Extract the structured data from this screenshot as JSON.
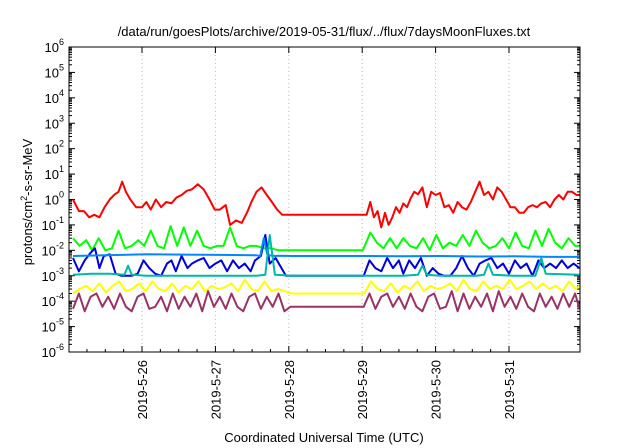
{
  "chart_data": {
    "type": "line",
    "title": "/data/run/goesPlots/archive/2019-05-31/flux/../flux/7daysMoonFluxes.txt",
    "xlabel": "Coordinated Universal Time (UTC)",
    "ylabel": {
      "base": "protons/cm",
      "sup": "2",
      "rest": "-s-sr-MeV"
    },
    "yscale": "log",
    "ylim": [
      1e-06,
      1000000.0
    ],
    "xlim": [
      "2019-05-25 02:00",
      "2019-05-31 23:30"
    ],
    "x_tick_labels": [
      "2019-5-26",
      "2019-5-27",
      "2019-5-28",
      "2019-5-29",
      "2019-5-30",
      "2019-5-31"
    ],
    "x_tick_days": [
      1,
      2,
      3,
      4,
      5,
      6
    ],
    "y_ticks": [
      {
        "base": "10",
        "exp": "-6"
      },
      {
        "base": "10",
        "exp": "-5"
      },
      {
        "base": "10",
        "exp": "-4"
      },
      {
        "base": "10",
        "exp": "-3"
      },
      {
        "base": "10",
        "exp": "-2"
      },
      {
        "base": "10",
        "exp": "-1"
      },
      {
        "base": "10",
        "exp": "0"
      },
      {
        "base": "10",
        "exp": "1"
      },
      {
        "base": "10",
        "exp": "2"
      },
      {
        "base": "10",
        "exp": "3"
      },
      {
        "base": "10",
        "exp": "4"
      },
      {
        "base": "10",
        "exp": "5"
      },
      {
        "base": "10",
        "exp": "6"
      }
    ],
    "grid": "vertical dotted at day ticks",
    "legend": "none",
    "series": [
      {
        "color": "#ff0000",
        "width": 2,
        "t": [
          0,
          0.08,
          0.15,
          0.22,
          0.29,
          0.36,
          0.43,
          0.5,
          0.57,
          0.62,
          0.67,
          0.72,
          0.78,
          0.86,
          0.94,
          1.0,
          1.06,
          1.13,
          1.2,
          1.27,
          1.34,
          1.41,
          1.48,
          1.55,
          1.62,
          1.7,
          1.78,
          1.86,
          1.93,
          2.0,
          2.08,
          2.14,
          2.22,
          2.3,
          2.38,
          2.43,
          2.5,
          2.57,
          2.64,
          2.71,
          2.78,
          2.85,
          2.92,
          3.0,
          3.1,
          3.2,
          3.3,
          3.4,
          3.5,
          3.6,
          3.7,
          3.8,
          3.9,
          4.0,
          4.05,
          4.1,
          4.15,
          4.2,
          4.25,
          4.3,
          4.35,
          4.4,
          4.45,
          4.5,
          4.55,
          4.6,
          4.65,
          4.7,
          4.76,
          4.82,
          4.88,
          4.94,
          5.0,
          5.06,
          5.12,
          5.18,
          5.24,
          5.3,
          5.36,
          5.42,
          5.48,
          5.54,
          5.6,
          5.66,
          5.72,
          5.78,
          5.84,
          5.9,
          5.96,
          6.02,
          6.08,
          6.14,
          6.2,
          6.26,
          6.32,
          6.38,
          6.44,
          6.5,
          6.56,
          6.62,
          6.68,
          6.74,
          6.8,
          6.86,
          6.9
        ],
        "y": [
          1.0,
          0.35,
          0.35,
          0.2,
          0.25,
          0.2,
          0.5,
          1.0,
          1.6,
          2.0,
          5.0,
          2.0,
          1.0,
          0.5,
          0.5,
          0.8,
          0.4,
          1.0,
          0.5,
          0.8,
          0.7,
          1.2,
          1.5,
          2.2,
          2.5,
          4.0,
          2.5,
          1.0,
          0.4,
          0.4,
          0.6,
          0.1,
          0.15,
          0.12,
          0.35,
          0.8,
          2.0,
          3.0,
          1.5,
          0.8,
          0.4,
          0.25,
          0.25,
          0.25,
          0.25,
          0.25,
          0.25,
          0.25,
          0.25,
          0.25,
          0.25,
          0.25,
          0.25,
          0.25,
          0.8,
          0.2,
          0.35,
          0.08,
          0.3,
          0.1,
          0.2,
          0.5,
          0.3,
          0.7,
          0.5,
          1.1,
          2.0,
          1.6,
          3.0,
          0.5,
          2.0,
          1.5,
          1.8,
          0.5,
          0.6,
          0.3,
          0.8,
          0.5,
          0.4,
          0.8,
          2.0,
          5.0,
          1.5,
          2.0,
          1.0,
          3.0,
          2.0,
          1.0,
          0.5,
          0.5,
          0.3,
          0.3,
          0.5,
          0.6,
          0.5,
          0.7,
          0.8,
          0.5,
          1.0,
          1.5,
          1.0,
          2.0,
          2.0,
          1.5,
          1.5
        ]
      },
      {
        "color": "#00ff00",
        "width": 2,
        "t": [
          0,
          0.09,
          0.18,
          0.26,
          0.35,
          0.44,
          0.53,
          0.62,
          0.71,
          0.8,
          0.89,
          0.97,
          1.06,
          1.15,
          1.24,
          1.33,
          1.42,
          1.51,
          1.6,
          1.69,
          1.78,
          1.87,
          1.96,
          2.05,
          2.14,
          2.23,
          2.32,
          2.41,
          2.5,
          2.6,
          2.7,
          2.8,
          2.9,
          3.0,
          3.2,
          3.4,
          3.6,
          3.8,
          3.95,
          4.05,
          4.14,
          4.23,
          4.32,
          4.41,
          4.5,
          4.59,
          4.68,
          4.77,
          4.86,
          4.95,
          5.04,
          5.13,
          5.22,
          5.31,
          5.4,
          5.49,
          5.58,
          5.67,
          5.76,
          5.85,
          5.94,
          6.03,
          6.12,
          6.21,
          6.3,
          6.39,
          6.48,
          6.57,
          6.66,
          6.75,
          6.84,
          6.9
        ],
        "y": [
          0.03,
          0.015,
          0.025,
          0.01,
          0.03,
          0.01,
          0.012,
          0.06,
          0.012,
          0.015,
          0.025,
          0.015,
          0.06,
          0.015,
          0.012,
          0.09,
          0.015,
          0.08,
          0.015,
          0.06,
          0.015,
          0.012,
          0.015,
          0.015,
          0.08,
          0.015,
          0.012,
          0.015,
          0.015,
          0.012,
          0.012,
          0.01,
          0.01,
          0.01,
          0.01,
          0.01,
          0.01,
          0.01,
          0.01,
          0.05,
          0.02,
          0.012,
          0.03,
          0.012,
          0.03,
          0.015,
          0.012,
          0.03,
          0.01,
          0.04,
          0.012,
          0.02,
          0.015,
          0.04,
          0.015,
          0.06,
          0.02,
          0.012,
          0.015,
          0.03,
          0.012,
          0.05,
          0.015,
          0.012,
          0.06,
          0.015,
          0.07,
          0.02,
          0.012,
          0.03,
          0.015,
          0.015
        ]
      },
      {
        "color": "#0000dd",
        "width": 2,
        "t": [
          0,
          0.08,
          0.16,
          0.24,
          0.3,
          0.36,
          0.42,
          0.5,
          0.58,
          0.66,
          0.72,
          0.8,
          0.88,
          0.96,
          1.04,
          1.12,
          1.2,
          1.28,
          1.34,
          1.4,
          1.48,
          1.56,
          1.62,
          1.7,
          1.78,
          1.86,
          1.94,
          2.02,
          2.1,
          2.18,
          2.26,
          2.34,
          2.42,
          2.48,
          2.56,
          2.62,
          2.68,
          2.76,
          2.84,
          2.9,
          3.0,
          3.2,
          3.4,
          3.6,
          3.8,
          3.96,
          4.04,
          4.12,
          4.2,
          4.28,
          4.36,
          4.44,
          4.5,
          4.58,
          4.66,
          4.74,
          4.82,
          4.9,
          4.98,
          5.06,
          5.14,
          5.22,
          5.3,
          5.38,
          5.46,
          5.54,
          5.62,
          5.7,
          5.78,
          5.86,
          5.94,
          6.02,
          6.1,
          6.18,
          6.26,
          6.34,
          6.42,
          6.5,
          6.58,
          6.66,
          6.74,
          6.82,
          6.9
        ],
        "y": [
          0.005,
          0.0015,
          0.004,
          0.008,
          0.012,
          0.002,
          0.006,
          0.007,
          0.0012,
          0.001,
          0.001,
          0.001,
          0.0012,
          0.004,
          0.002,
          0.0012,
          0.001,
          0.003,
          0.004,
          0.0015,
          0.006,
          0.002,
          0.003,
          0.004,
          0.005,
          0.002,
          0.003,
          0.004,
          0.0015,
          0.004,
          0.002,
          0.003,
          0.0015,
          0.004,
          0.006,
          0.04,
          0.003,
          0.005,
          0.002,
          0.001,
          0.001,
          0.001,
          0.001,
          0.001,
          0.001,
          0.001,
          0.004,
          0.002,
          0.0015,
          0.005,
          0.002,
          0.004,
          0.0012,
          0.004,
          0.002,
          0.005,
          0.001,
          0.002,
          0.0012,
          0.001,
          0.001,
          0.002,
          0.006,
          0.002,
          0.001,
          0.003,
          0.004,
          0.005,
          0.002,
          0.003,
          0.0012,
          0.004,
          0.002,
          0.003,
          0.001,
          0.004,
          0.002,
          0.003,
          0.002,
          0.004,
          0.002,
          0.003,
          0.002
        ]
      },
      {
        "color": "#0088ff",
        "width": 2,
        "t": [
          0,
          0.5,
          1.0,
          1.5,
          2.0,
          2.5,
          2.55,
          2.6,
          2.65,
          2.7,
          2.75,
          2.8,
          3.0,
          3.5,
          4.0,
          4.5,
          5.0,
          5.5,
          6.0,
          6.5,
          6.9
        ],
        "y": [
          0.006,
          0.0065,
          0.007,
          0.0068,
          0.0066,
          0.0064,
          0.006,
          0.03,
          0.0062,
          0.0063,
          0.006,
          0.0061,
          0.006,
          0.006,
          0.006,
          0.0058,
          0.006,
          0.0057,
          0.0058,
          0.0055,
          0.0055
        ]
      },
      {
        "color": "#00b8a8",
        "width": 2,
        "t": [
          0,
          0.25,
          0.5,
          0.7,
          0.75,
          0.8,
          1.0,
          1.5,
          2.0,
          2.5,
          2.62,
          2.68,
          2.75,
          3.0,
          3.5,
          4.0,
          4.5,
          4.7,
          4.76,
          4.82,
          5.0,
          5.5,
          5.6,
          5.66,
          5.72,
          6.0,
          6.3,
          6.38,
          6.44,
          6.9
        ],
        "y": [
          0.0011,
          0.0012,
          0.0012,
          0.0011,
          0.0025,
          0.0011,
          0.001,
          0.001,
          0.001,
          0.001,
          0.0011,
          0.04,
          0.0011,
          0.001,
          0.001,
          0.001,
          0.001,
          0.0011,
          0.0025,
          0.0011,
          0.001,
          0.001,
          0.0011,
          0.003,
          0.0011,
          0.001,
          0.001,
          0.005,
          0.0012,
          0.0011
        ]
      },
      {
        "color": "#ffff00",
        "width": 2,
        "t": [
          0,
          0.09,
          0.18,
          0.27,
          0.36,
          0.45,
          0.54,
          0.63,
          0.72,
          0.81,
          0.9,
          0.99,
          1.08,
          1.17,
          1.26,
          1.35,
          1.44,
          1.53,
          1.62,
          1.71,
          1.8,
          1.89,
          1.98,
          2.07,
          2.16,
          2.25,
          2.34,
          2.43,
          2.52,
          2.61,
          2.7,
          2.79,
          2.88,
          2.97,
          3.2,
          3.4,
          3.6,
          3.8,
          3.97,
          4.06,
          4.15,
          4.24,
          4.33,
          4.42,
          4.51,
          4.6,
          4.69,
          4.78,
          4.87,
          4.96,
          5.05,
          5.14,
          5.23,
          5.32,
          5.41,
          5.5,
          5.59,
          5.68,
          5.77,
          5.86,
          5.95,
          6.04,
          6.13,
          6.22,
          6.31,
          6.4,
          6.49,
          6.58,
          6.67,
          6.76,
          6.85,
          6.9
        ],
        "y": [
          0.0002,
          0.0003,
          0.0004,
          0.00025,
          0.0005,
          0.00022,
          0.0004,
          0.0006,
          0.00025,
          0.0003,
          0.0005,
          0.00025,
          0.0006,
          0.0003,
          0.00025,
          0.0005,
          0.00022,
          0.0004,
          0.0003,
          0.0006,
          0.00025,
          0.0004,
          0.0003,
          0.00035,
          0.0005,
          0.00025,
          0.0007,
          0.0003,
          0.00025,
          0.0006,
          0.00025,
          0.0003,
          0.00025,
          0.0002,
          0.0002,
          0.0002,
          0.0002,
          0.0002,
          0.0002,
          0.0006,
          0.0003,
          0.00025,
          0.0005,
          0.00022,
          0.0004,
          0.0003,
          0.0006,
          0.00025,
          0.0004,
          0.0003,
          0.00035,
          0.0005,
          0.00025,
          0.0007,
          0.0003,
          0.00025,
          0.0006,
          0.0003,
          0.0004,
          0.0003,
          0.0007,
          0.0003,
          0.0004,
          0.0006,
          0.0003,
          0.0005,
          0.0003,
          0.0004,
          0.00025,
          0.0006,
          0.0003,
          0.0004
        ]
      },
      {
        "color": "#993366",
        "width": 2,
        "t": [
          0,
          0.08,
          0.16,
          0.24,
          0.32,
          0.4,
          0.48,
          0.56,
          0.64,
          0.72,
          0.8,
          0.88,
          0.96,
          1.04,
          1.12,
          1.2,
          1.28,
          1.36,
          1.44,
          1.52,
          1.6,
          1.68,
          1.76,
          1.84,
          1.92,
          2.0,
          2.08,
          2.16,
          2.24,
          2.32,
          2.4,
          2.48,
          2.56,
          2.64,
          2.72,
          2.8,
          2.88,
          2.96,
          3.2,
          3.4,
          3.6,
          3.8,
          3.96,
          4.04,
          4.12,
          4.2,
          4.28,
          4.36,
          4.44,
          4.52,
          4.6,
          4.68,
          4.76,
          4.84,
          4.92,
          5.0,
          5.08,
          5.16,
          5.24,
          5.32,
          5.4,
          5.48,
          5.56,
          5.64,
          5.72,
          5.8,
          5.88,
          5.96,
          6.04,
          6.12,
          6.2,
          6.28,
          6.36,
          6.44,
          6.52,
          6.6,
          6.68,
          6.76,
          6.84,
          6.9
        ],
        "y": [
          5e-05,
          0.0002,
          4e-05,
          0.00015,
          0.0002,
          6e-05,
          0.00015,
          5e-05,
          0.0002,
          6e-05,
          4e-05,
          0.00015,
          0.0002,
          5e-05,
          6e-05,
          0.00015,
          4e-05,
          0.0002,
          5e-05,
          0.00015,
          6e-05,
          0.0002,
          4e-05,
          0.00025,
          6e-05,
          0.00015,
          5e-05,
          0.0002,
          6e-05,
          4e-05,
          0.00015,
          0.0002,
          5e-05,
          0.00015,
          6e-05,
          0.0002,
          4e-05,
          6e-05,
          6e-05,
          6e-05,
          6e-05,
          6e-05,
          6e-05,
          0.0002,
          5e-05,
          0.00015,
          0.0002,
          6e-05,
          0.00015,
          5e-05,
          0.0002,
          6e-05,
          4e-05,
          0.00015,
          0.0002,
          5e-05,
          6e-05,
          0.00025,
          4e-05,
          0.0002,
          5e-05,
          0.00015,
          6e-05,
          0.0002,
          4e-05,
          0.00025,
          6e-05,
          0.00015,
          5e-05,
          0.0002,
          6e-05,
          4e-05,
          0.0002,
          6e-05,
          0.00015,
          5e-05,
          0.0002,
          6e-05,
          0.0002,
          5e-05
        ]
      }
    ]
  }
}
